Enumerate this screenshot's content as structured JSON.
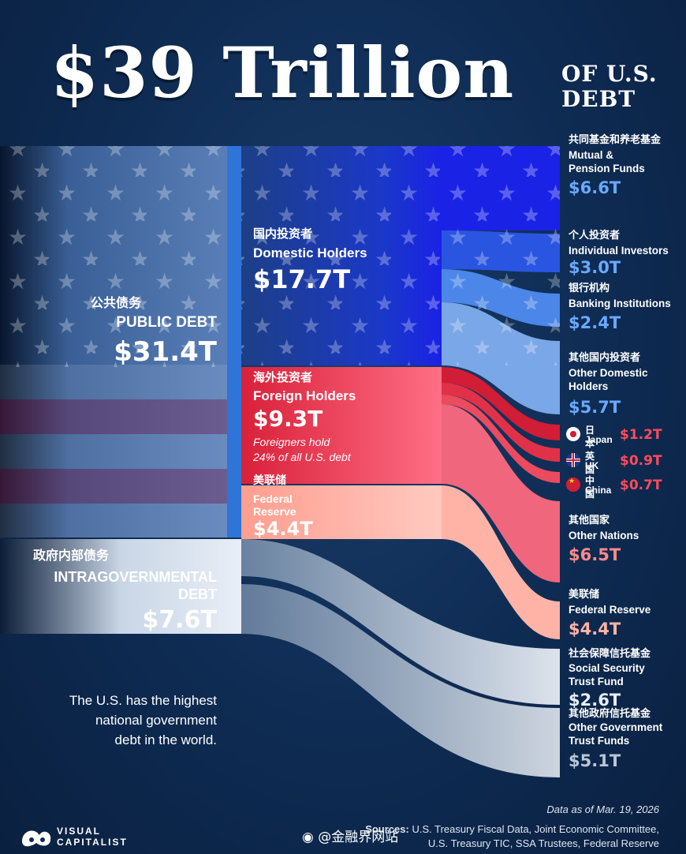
{
  "title": {
    "main": "$39 Trillion",
    "sub_line1": "OF U.S.",
    "sub_line2": "DEBT"
  },
  "public_debt": {
    "cn": "公共债务",
    "en": "PUBLIC DEBT",
    "value": "$31.4T"
  },
  "intragovernmental": {
    "cn": "政府内部债务",
    "en_line1": "INTRAGOVERNMENTAL",
    "en_line2": "DEBT",
    "value": "$7.6T"
  },
  "tagline": {
    "line1": "The U.S. has the highest",
    "line2": "national government",
    "line3": "debt in the world."
  },
  "domestic": {
    "cn": "国内投资者",
    "en": "Domestic Holders",
    "value": "$17.7T"
  },
  "foreign": {
    "cn": "海外投资者",
    "en": "Foreign Holders",
    "value": "$9.3T",
    "note_line1": "Foreigners hold",
    "note_line2": "24% of all U.S. debt"
  },
  "fed_mid": {
    "cn": "美联储",
    "en_line1": "Federal",
    "en_line2": "Reserve",
    "value": "$4.4T"
  },
  "mutual": {
    "cn": "共同基金和养老基金",
    "en_line1": "Mutual &",
    "en_line2": "Pension Funds",
    "value": "$6.6T"
  },
  "individual": {
    "cn": "个人投资者",
    "en": "Individual Investors",
    "value": "$3.0T"
  },
  "banking": {
    "cn": "银行机构",
    "en": "Banking Institutions",
    "value": "$2.4T"
  },
  "other_domestic": {
    "cn": "其他国内投资者",
    "en_line1": "Other Domestic",
    "en_line2": "Holders",
    "value": "$5.7T"
  },
  "japan": {
    "cn": "日本",
    "en": "Japan",
    "value": "$1.2T"
  },
  "uk": {
    "cn": "英国",
    "en": "UK",
    "value": "$0.9T"
  },
  "china": {
    "cn": "中国",
    "en": "China",
    "value": "$0.7T"
  },
  "other_nations": {
    "cn": "其他国家",
    "en": "Other Nations",
    "value": "$6.5T"
  },
  "fed_right": {
    "cn": "美联储",
    "en": "Federal Reserve",
    "value": "$4.4T"
  },
  "social_security": {
    "cn": "社会保障信托基金",
    "en_line1": "Social Security",
    "en_line2": "Trust Fund",
    "value": "$2.6T"
  },
  "other_gov": {
    "cn": "其他政府信托基金",
    "en_line1": "Other Government",
    "en_line2": "Trust Funds",
    "value": "$5.1T"
  },
  "footer": {
    "date": "Data as of Mar. 19, 2026",
    "sources_label": "Sources:",
    "sources_line1": "U.S. Treasury Fiscal Data, Joint Economic Committee,",
    "sources_line2": "U.S. Treasury TIC, SSA Trustees, Federal Reserve",
    "logo_line1": "VISUAL",
    "logo_line2": "CAPITALIST",
    "watermark": "@金融界网站"
  },
  "colors": {
    "background": "#0e2b52",
    "domestic": "#1a22e6",
    "foreign": "#d9203a",
    "federal_reserve": "#ffb3a6",
    "intragovernmental": "#e8eef6",
    "blue_value": "#6aa8ff",
    "red_value": "#ff4b5c"
  }
}
